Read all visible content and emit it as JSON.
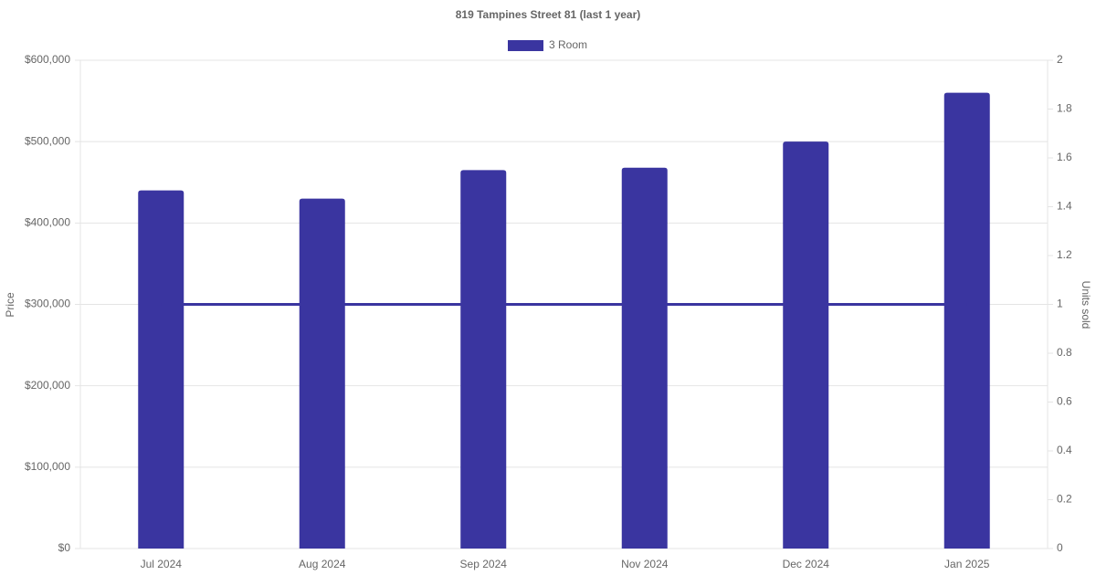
{
  "chart_data": {
    "type": "bar",
    "title": "819 Tampines Street 81 (last 1 year)",
    "categories": [
      "Jul 2024",
      "Aug 2024",
      "Sep 2024",
      "Nov 2024",
      "Dec 2024",
      "Jan 2025"
    ],
    "series": [
      {
        "name": "3 Room",
        "type": "bar",
        "color": "#3a35a0",
        "values": [
          440000,
          430000,
          465000,
          468000,
          500000,
          560000
        ]
      },
      {
        "type": "line",
        "axis": "y2",
        "color": "#3a35a0",
        "values": [
          1,
          1,
          1,
          1,
          1,
          1
        ]
      }
    ],
    "ylabel": "Price",
    "y2label": "Units sold",
    "ylim": [
      0,
      600000
    ],
    "yticks": [
      {
        "value": 0,
        "label": "$0"
      },
      {
        "value": 100000,
        "label": "$100,000"
      },
      {
        "value": 200000,
        "label": "$200,000"
      },
      {
        "value": 300000,
        "label": "$300,000"
      },
      {
        "value": 400000,
        "label": "$400,000"
      },
      {
        "value": 500000,
        "label": "$500,000"
      },
      {
        "value": 600000,
        "label": "$600,000"
      }
    ],
    "y2lim": [
      0,
      2
    ],
    "y2ticks": [
      0,
      0.2,
      0.4,
      0.6,
      0.8,
      1,
      1.2,
      1.4,
      1.6,
      1.8,
      2
    ],
    "grid": true
  }
}
